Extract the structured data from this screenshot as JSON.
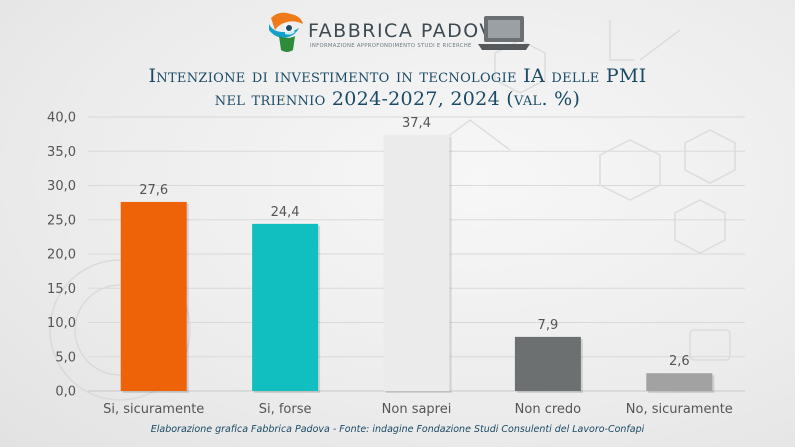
{
  "brand": {
    "name": "FABBRICA PADOVA",
    "tagline": "INFORMAZIONE APPROFONDIMENTO STUDI E RICERCHE"
  },
  "footer": {
    "source": "Elaborazione grafica Fabbrica Padova - Fonte: indagine Fondazione Studi Consulenti del Lavoro-Confapi"
  },
  "chart_data": {
    "type": "bar",
    "title_line1": "Intenzione di investimento in tecnologie IA delle PMI",
    "title_line2": "nel triennio 2024-2027, 2024 (val. %)",
    "categories": [
      "Si, sicuramente",
      "Si, forse",
      "Non saprei",
      "Non credo",
      "No, sicuramente"
    ],
    "values": [
      27.6,
      24.4,
      37.4,
      7.9,
      2.6
    ],
    "value_labels": [
      "27,6",
      "24,4",
      "37,4",
      "7,9",
      "2,6"
    ],
    "colors": [
      "#ee6308",
      "#12bfc0",
      "#ebebeb",
      "#6d7070",
      "#a2a2a2"
    ],
    "ylim": [
      0,
      40
    ],
    "yticks": [
      0,
      5,
      10,
      15,
      20,
      25,
      30,
      35,
      40
    ],
    "ytick_labels": [
      "0,0",
      "5,0",
      "10,0",
      "15,0",
      "20,0",
      "25,0",
      "30,0",
      "35,0",
      "40,0"
    ],
    "grid": true,
    "xlabel": "",
    "ylabel": ""
  }
}
